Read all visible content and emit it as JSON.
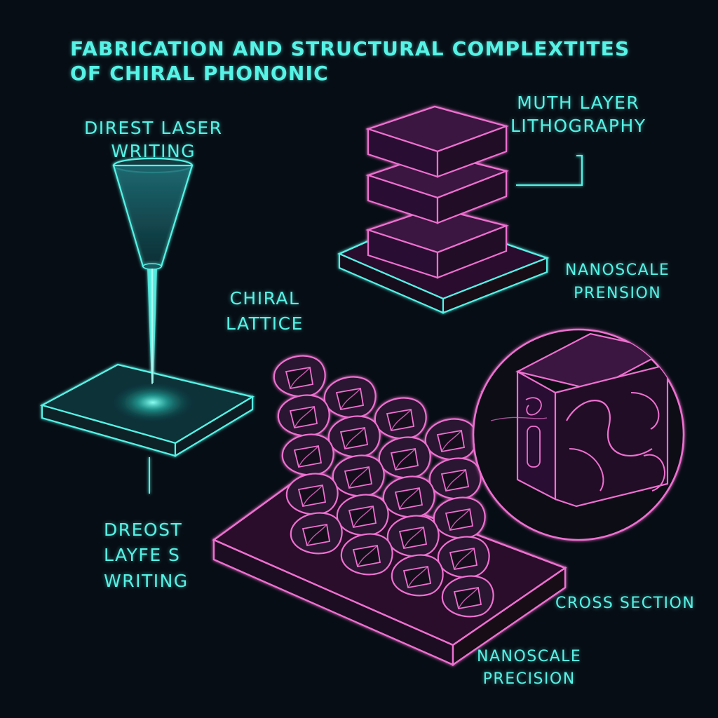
{
  "title": {
    "line1": "FABRICATION AND STRUCTURAL COMPLEXTITES",
    "line2": "OF CHIRAL PHONONIC"
  },
  "labels": {
    "direct_laser_writing": {
      "line1": "DIREST LASER",
      "line2": "WRITING"
    },
    "multi_layer_lithography": {
      "line1": "MUTH LAYER",
      "line2": "LITHOGRAPHY"
    },
    "chiral_lattice": {
      "line1": "CHIRAL",
      "line2": "LATTICE"
    },
    "nanoscale_precision_top": {
      "line1": "NANOSCALE",
      "line2": "PRENSION"
    },
    "dreost_layfes_writing": {
      "line1": "DREOST",
      "line2": "LAYFE S",
      "line3": "WRITING"
    },
    "cross_section": "CROSS SECTION",
    "nanoscale_precision_bottom": {
      "line1": "NANOSCALE",
      "line2": "PRECISION"
    }
  },
  "colors": {
    "background": "#070d15",
    "cyan": "#56f3e6",
    "pink": "#ee6fd0",
    "purple_fill": "#2c1230"
  }
}
